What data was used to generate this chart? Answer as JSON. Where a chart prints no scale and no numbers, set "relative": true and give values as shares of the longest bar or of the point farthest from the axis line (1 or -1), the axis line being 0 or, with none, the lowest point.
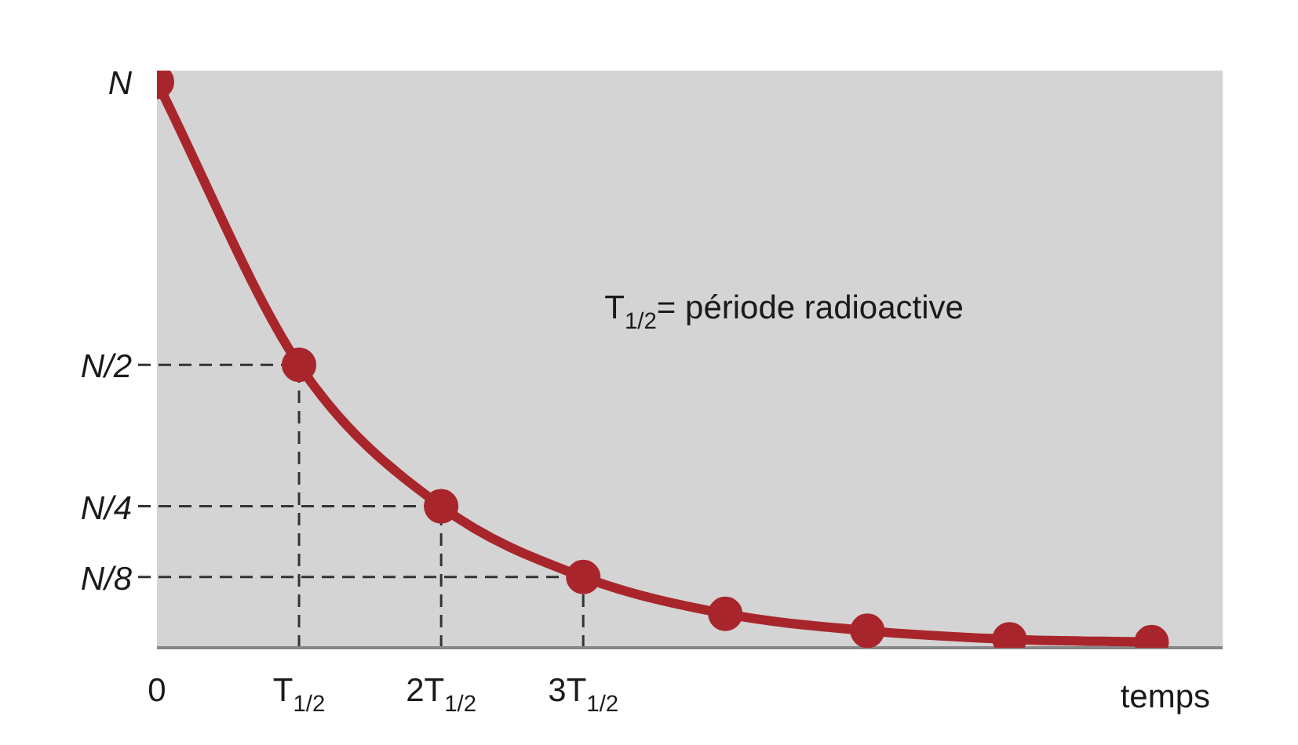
{
  "chart_data": {
    "type": "line",
    "xlabel": "temps",
    "relative": true,
    "categories": [
      "0",
      "T$_{1/2}$",
      "2T$_{1/2}$",
      "3T$_{1/2}$",
      null,
      null,
      null,
      null
    ],
    "series": [
      {
        "color": "#a8262b",
        "values": [
          1,
          0.5,
          0.25,
          0.125,
          0.06,
          0.03,
          0.015,
          0.01
        ]
      }
    ],
    "ylabel": "N",
    "ref_lines": [
      {
        "axis": "y",
        "value": 0.5,
        "label": "N/2",
        "line_style": "dashed"
      },
      {
        "axis": "y",
        "value": 0.25,
        "label": "N/4",
        "line_style": "dashed"
      },
      {
        "axis": "y",
        "value": 0.125,
        "label": "N/8",
        "line_style": "dashed"
      },
      {
        "axis": "x",
        "value": "T$_{1/2}$",
        "line_style": "dashed"
      },
      {
        "axis": "x",
        "value": "2T$_{1/2}$",
        "line_style": "dashed"
      },
      {
        "axis": "x",
        "value": "3T$_{1/2}$",
        "line_style": "dashed"
      }
    ],
    "annotations": [
      "T$_{1/2}$= période radioactive"
    ],
    "marker": "circle",
    "line_style": "solid",
    "grid": false,
    "legend": false
  }
}
